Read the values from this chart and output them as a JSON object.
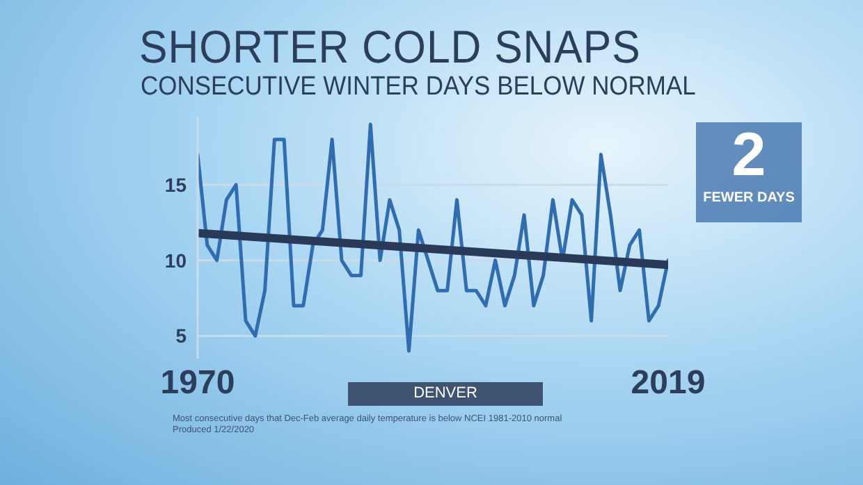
{
  "chart_data": {
    "type": "line",
    "title": "SHORTER COLD SNAPS",
    "subtitle": "CONSECUTIVE WINTER DAYS BELOW NORMAL",
    "x": [
      1970,
      1971,
      1972,
      1973,
      1974,
      1975,
      1976,
      1977,
      1978,
      1979,
      1980,
      1981,
      1982,
      1983,
      1984,
      1985,
      1986,
      1987,
      1988,
      1989,
      1990,
      1991,
      1992,
      1993,
      1994,
      1995,
      1996,
      1997,
      1998,
      1999,
      2000,
      2001,
      2002,
      2003,
      2004,
      2005,
      2006,
      2007,
      2008,
      2009,
      2010,
      2011,
      2012,
      2013,
      2014,
      2015,
      2016,
      2017,
      2018,
      2019
    ],
    "series": [
      {
        "color": "#2f6db0",
        "values": [
          17,
          11,
          10,
          14,
          15,
          6,
          5,
          8,
          18,
          18,
          7,
          7,
          11,
          12,
          18,
          10,
          9,
          9,
          19,
          10,
          14,
          12,
          4,
          12,
          10,
          8,
          8,
          14,
          8,
          8,
          7,
          10,
          7,
          9,
          13,
          7,
          9,
          14,
          10,
          14,
          13,
          6,
          17,
          13,
          8,
          11,
          12,
          6,
          7,
          10
        ]
      },
      {
        "type": "line",
        "color": "#283a58",
        "x": [
          1970,
          2019
        ],
        "values": [
          11.8,
          9.7
        ]
      }
    ],
    "xlim": [
      1970,
      2019
    ],
    "xticks": [
      1970,
      2019
    ],
    "ylim": [
      3.5,
      19.5
    ],
    "yticks": [
      5,
      10,
      15
    ],
    "grid": "y",
    "marker": "none",
    "line_style": "solid",
    "annotations": [
      "2",
      "FEWER DAYS",
      "DENVER",
      "Most consecutive days that Dec-Feb average daily temperature is below NCEI 1981-2010 normal",
      "Produced 1/22/2020"
    ]
  }
}
